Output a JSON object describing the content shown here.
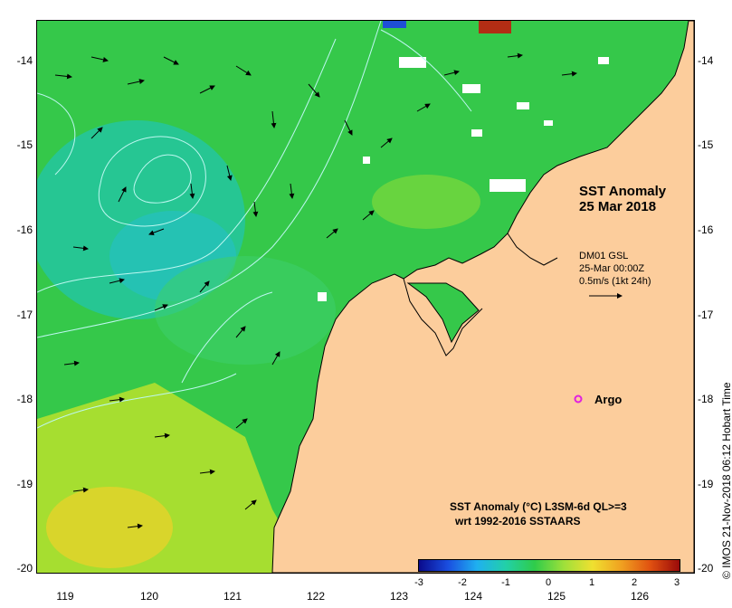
{
  "map": {
    "title_line1": "SST Anomaly",
    "title_line2": "25 Mar 2018",
    "vector_source": "DM01 GSL",
    "vector_time": "25-Mar 00:00Z",
    "vector_scale": "0.5m/s (1kt 24h)",
    "argo_label": "Argo",
    "credit": "© IMOS 21-Nov-2018 06:12 Hobart Time",
    "colorbar_title_line1": "SST Anomaly (°C) L3SM-6d QL>=3",
    "colorbar_title_line2": "wrt 1992-2016 SSTAARS",
    "colorbar_ticks": [
      "-3",
      "-2",
      "-1",
      "0",
      "1",
      "2",
      "3"
    ],
    "lat_ticks": [
      "-14",
      "-15",
      "-16",
      "-17",
      "-18",
      "-19",
      "-20"
    ],
    "lon_ticks": [
      "119",
      "120",
      "121",
      "122",
      "123",
      "124",
      "125",
      "126"
    ],
    "colors": {
      "land": "#fccd9c",
      "sea_base": "#2fcc4a",
      "argo": "#e020e0",
      "contour": "#bdf7f0"
    }
  }
}
